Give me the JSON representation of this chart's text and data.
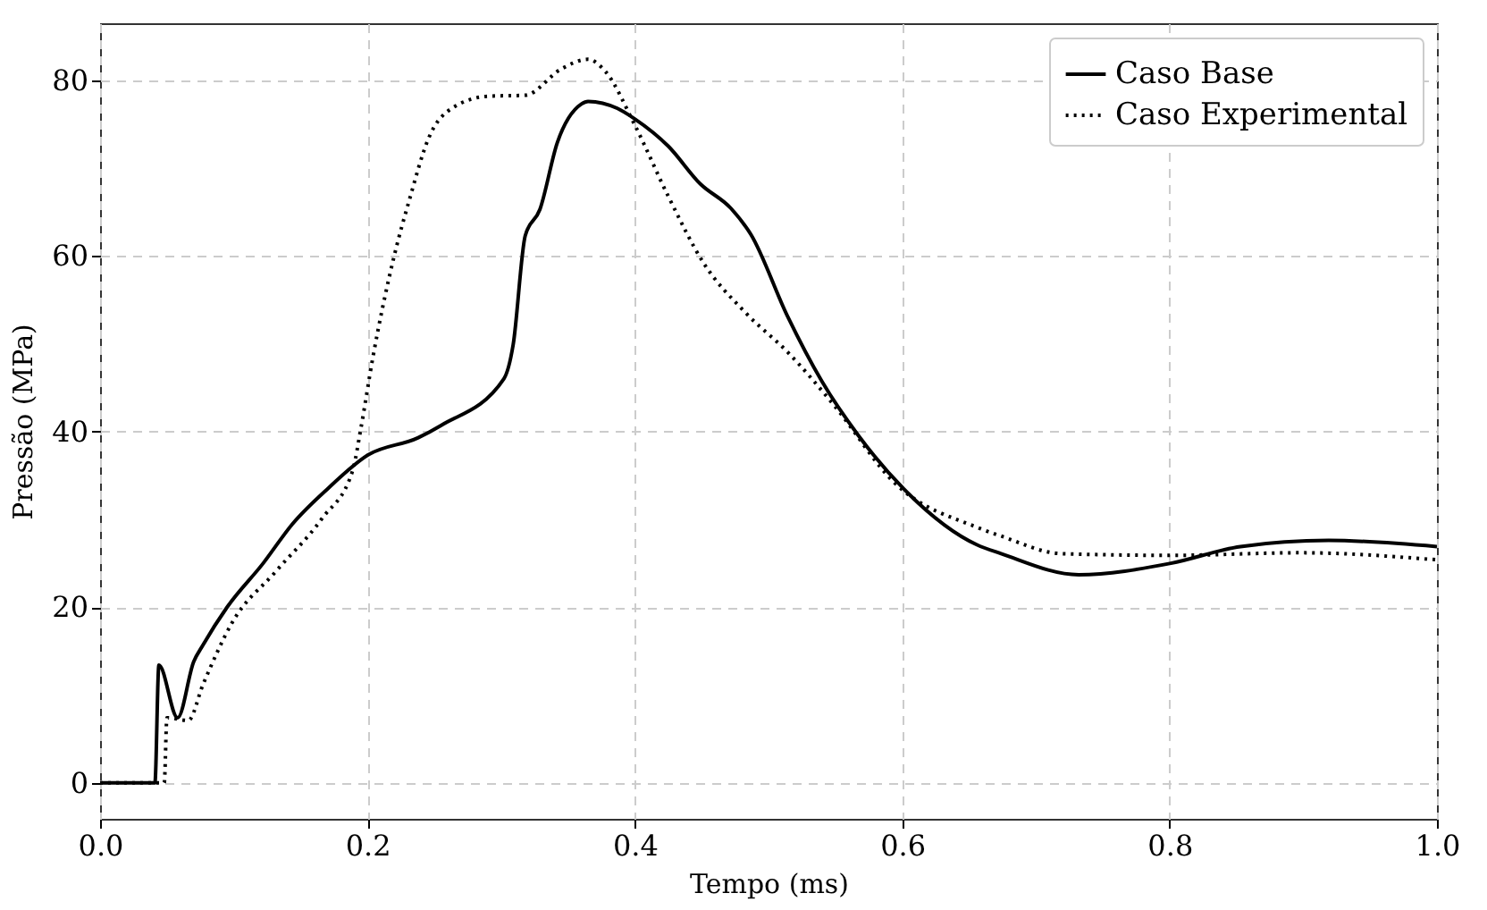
{
  "chart_data": {
    "type": "line",
    "xlabel": "Tempo (ms)",
    "ylabel": "Pressão (MPa)",
    "xlim": [
      0,
      1.0
    ],
    "ylim": [
      -4.1,
      86.5
    ],
    "xticks": [
      {
        "value": 0,
        "label": "0.0"
      },
      0.2,
      0.4,
      0.6,
      0.8,
      {
        "value": 1.0,
        "label": "1.0"
      }
    ],
    "yticks": [
      0,
      20,
      40,
      60,
      80
    ],
    "grid": true,
    "legend": "top right",
    "series": [
      {
        "name": "Caso Base",
        "color": "#000000",
        "line_style": "solid",
        "x": [
          0,
          0.041,
          0.044,
          0.058,
          0.07,
          0.077,
          0.095,
          0.122,
          0.144,
          0.171,
          0.2,
          0.238,
          0.255,
          0.302,
          0.309,
          0.318,
          0.329,
          0.342,
          0.36,
          0.365,
          0.387,
          0.4,
          0.425,
          0.449,
          0.472,
          0.487,
          0.514,
          0.54,
          0.567,
          0.601,
          0.656,
          0.674,
          0.732,
          0.801,
          0.853,
          0.919,
          1.0
        ],
        "values": [
          0,
          0,
          13.4,
          7.4,
          13.8,
          15.7,
          20,
          25,
          29.5,
          33.6,
          37.3,
          39.3,
          40.7,
          46.0,
          49.9,
          62.3,
          65.3,
          72.9,
          77.3,
          77.6,
          76.8,
          75.6,
          72.5,
          68.2,
          65.4,
          62.4,
          53.2,
          45.7,
          39.6,
          33.5,
          27.1,
          26.1,
          23.7,
          25.0,
          26.9,
          27.6,
          26.9
        ]
      },
      {
        "name": "Caso Experimental",
        "color": "#000000",
        "line_style": "dotted",
        "x": [
          0,
          0.048,
          0.05,
          0.066,
          0.077,
          0.099,
          0.131,
          0.166,
          0.189,
          0.195,
          0.204,
          0.22,
          0.231,
          0.246,
          0.264,
          0.291,
          0.318,
          0.345,
          0.365,
          0.378,
          0.4,
          0.425,
          0.451,
          0.483,
          0.514,
          0.549,
          0.594,
          0.656,
          0.674,
          0.719,
          0.801,
          0.897,
          1.0
        ],
        "values": [
          0,
          0,
          7.4,
          7.1,
          11.2,
          18.3,
          24.0,
          30.1,
          35.6,
          40.3,
          48.4,
          60,
          66.2,
          73.5,
          76.9,
          78.2,
          78.3,
          81.3,
          82.4,
          81.0,
          74.9,
          66.8,
          59.3,
          53.5,
          49.1,
          43.0,
          34.2,
          29.1,
          28.1,
          26.1,
          25.9,
          26.2,
          25.4
        ]
      }
    ]
  }
}
